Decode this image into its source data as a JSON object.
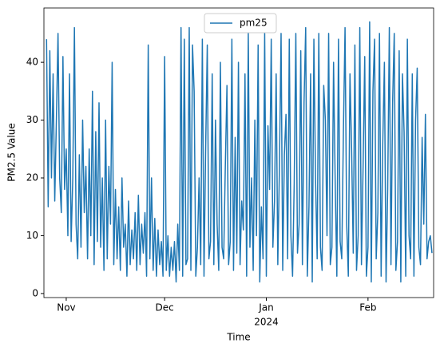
{
  "chart_data": {
    "type": "line",
    "xlabel": "Time",
    "ylabel": "PM2.5 Value",
    "x_year_label": "2024",
    "xlim": [
      19655.2,
      19774
    ],
    "ylim": [
      -0.7,
      49.4
    ],
    "xticks": [
      {
        "value": 19662,
        "label": "Nov"
      },
      {
        "value": 19692,
        "label": "Dec"
      },
      {
        "value": 19723,
        "label": "Jan"
      },
      {
        "value": 19754,
        "label": "Feb"
      }
    ],
    "yticks": [
      0,
      10,
      20,
      30,
      40
    ],
    "legend": "upper center",
    "x": [
      19656,
      19656.5,
      19657,
      19657.5,
      19658,
      19658.5,
      19659,
      19659.5,
      19660,
      19660.5,
      19661,
      19661.5,
      19662,
      19662.5,
      19663,
      19663.5,
      19664,
      19664.5,
      19665,
      19665.5,
      19666,
      19666.5,
      19667,
      19667.5,
      19668,
      19668.5,
      19669,
      19669.5,
      19670,
      19670.5,
      19671,
      19671.5,
      19672,
      19672.5,
      19673,
      19673.5,
      19674,
      19674.5,
      19675,
      19675.5,
      19676,
      19676.5,
      19677,
      19677.5,
      19678,
      19678.5,
      19679,
      19679.5,
      19680,
      19680.5,
      19681,
      19681.5,
      19682,
      19682.5,
      19683,
      19683.5,
      19684,
      19684.5,
      19685,
      19685.5,
      19686,
      19686.5,
      19687,
      19687.5,
      19688,
      19688.5,
      19689,
      19689.5,
      19690,
      19690.5,
      19691,
      19691.5,
      19692,
      19692.5,
      19693,
      19693.5,
      19694,
      19694.5,
      19695,
      19695.5,
      19696,
      19696.5,
      19697,
      19697.5,
      19698,
      19698.5,
      19699,
      19699.5,
      19700,
      19700.5,
      19701,
      19701.5,
      19702,
      19702.5,
      19703,
      19703.5,
      19704,
      19704.5,
      19705,
      19705.5,
      19706,
      19706.5,
      19707,
      19707.5,
      19708,
      19708.5,
      19709,
      19709.5,
      19710,
      19710.5,
      19711,
      19711.5,
      19712,
      19712.5,
      19713,
      19713.5,
      19714,
      19714.5,
      19715,
      19715.5,
      19716,
      19716.5,
      19717,
      19717.5,
      19718,
      19718.5,
      19719,
      19719.5,
      19720,
      19720.5,
      19721,
      19721.5,
      19722,
      19722.5,
      19723,
      19723.5,
      19724,
      19724.5,
      19725,
      19725.5,
      19726,
      19726.5,
      19727,
      19727.5,
      19728,
      19728.5,
      19729,
      19729.5,
      19730,
      19730.5,
      19731,
      19731.5,
      19732,
      19732.5,
      19733,
      19733.5,
      19734,
      19734.5,
      19735,
      19735.5,
      19736,
      19736.5,
      19737,
      19737.5,
      19738,
      19738.5,
      19739,
      19739.5,
      19740,
      19740.5,
      19741,
      19741.5,
      19742,
      19742.5,
      19743,
      19743.5,
      19744,
      19744.5,
      19745,
      19745.5,
      19746,
      19746.5,
      19747,
      19747.5,
      19748,
      19748.5,
      19749,
      19749.5,
      19750,
      19750.5,
      19751,
      19751.5,
      19752,
      19752.5,
      19753,
      19753.5,
      19754,
      19754.5,
      19755,
      19755.5,
      19756,
      19756.5,
      19757,
      19757.5,
      19758,
      19758.5,
      19759,
      19759.5,
      19760,
      19760.5,
      19761,
      19761.5,
      19762,
      19762.5,
      19763,
      19763.5,
      19764,
      19764.5,
      19765,
      19765.5,
      19766,
      19766.5,
      19767,
      19767.5,
      19768,
      19768.5,
      19769,
      19769.5,
      19770,
      19770.5,
      19771,
      19771.5,
      19772,
      19772.5,
      19773,
      19773.5
    ],
    "series": [
      {
        "name": "pm25",
        "color": "#1f77b4",
        "values": [
          44,
          15,
          42,
          20,
          38,
          16,
          30,
          45,
          20,
          14,
          41,
          18,
          25,
          10,
          38,
          9,
          20,
          46,
          12,
          6,
          24,
          8,
          30,
          14,
          22,
          6,
          25,
          10,
          35,
          5,
          28,
          9,
          33,
          8,
          20,
          4,
          30,
          6,
          22,
          12,
          40,
          5,
          18,
          6,
          15,
          4,
          20,
          8,
          12,
          3,
          16,
          5,
          11,
          6,
          14,
          4,
          17,
          5,
          12,
          7,
          14,
          3,
          43,
          6,
          20,
          4,
          13,
          3,
          11,
          5,
          9,
          3,
          41,
          4,
          10,
          3,
          8,
          4,
          9,
          2,
          12,
          4,
          46,
          3,
          44,
          5,
          6,
          46,
          4,
          43,
          35,
          3,
          8,
          20,
          5,
          44,
          3,
          25,
          43,
          6,
          9,
          38,
          5,
          30,
          12,
          4,
          40,
          8,
          6,
          22,
          36,
          5,
          9,
          44,
          4,
          27,
          7,
          40,
          5,
          16,
          11,
          38,
          3,
          45,
          8,
          20,
          4,
          30,
          10,
          43,
          2,
          15,
          6,
          45,
          3,
          29,
          18,
          44,
          8,
          16,
          38,
          5,
          22,
          45,
          4,
          24,
          31,
          6,
          44,
          10,
          3,
          19,
          45,
          7,
          12,
          42,
          5,
          33,
          46,
          3,
          15,
          38,
          2,
          44,
          20,
          6,
          45,
          8,
          4,
          36,
          30,
          10,
          45,
          5,
          8,
          40,
          19,
          3,
          44,
          9,
          6,
          28,
          46,
          12,
          3,
          38,
          25,
          7,
          43,
          4,
          10,
          46,
          5,
          22,
          41,
          3,
          8,
          47,
          2,
          35,
          44,
          6,
          14,
          45,
          3,
          26,
          40,
          2,
          18,
          46,
          5,
          33,
          45,
          4,
          9,
          42,
          2,
          38,
          28,
          3,
          44,
          10,
          6,
          38,
          3,
          30,
          39,
          8,
          5,
          27,
          12,
          31,
          6,
          9,
          10,
          7
        ]
      }
    ]
  }
}
